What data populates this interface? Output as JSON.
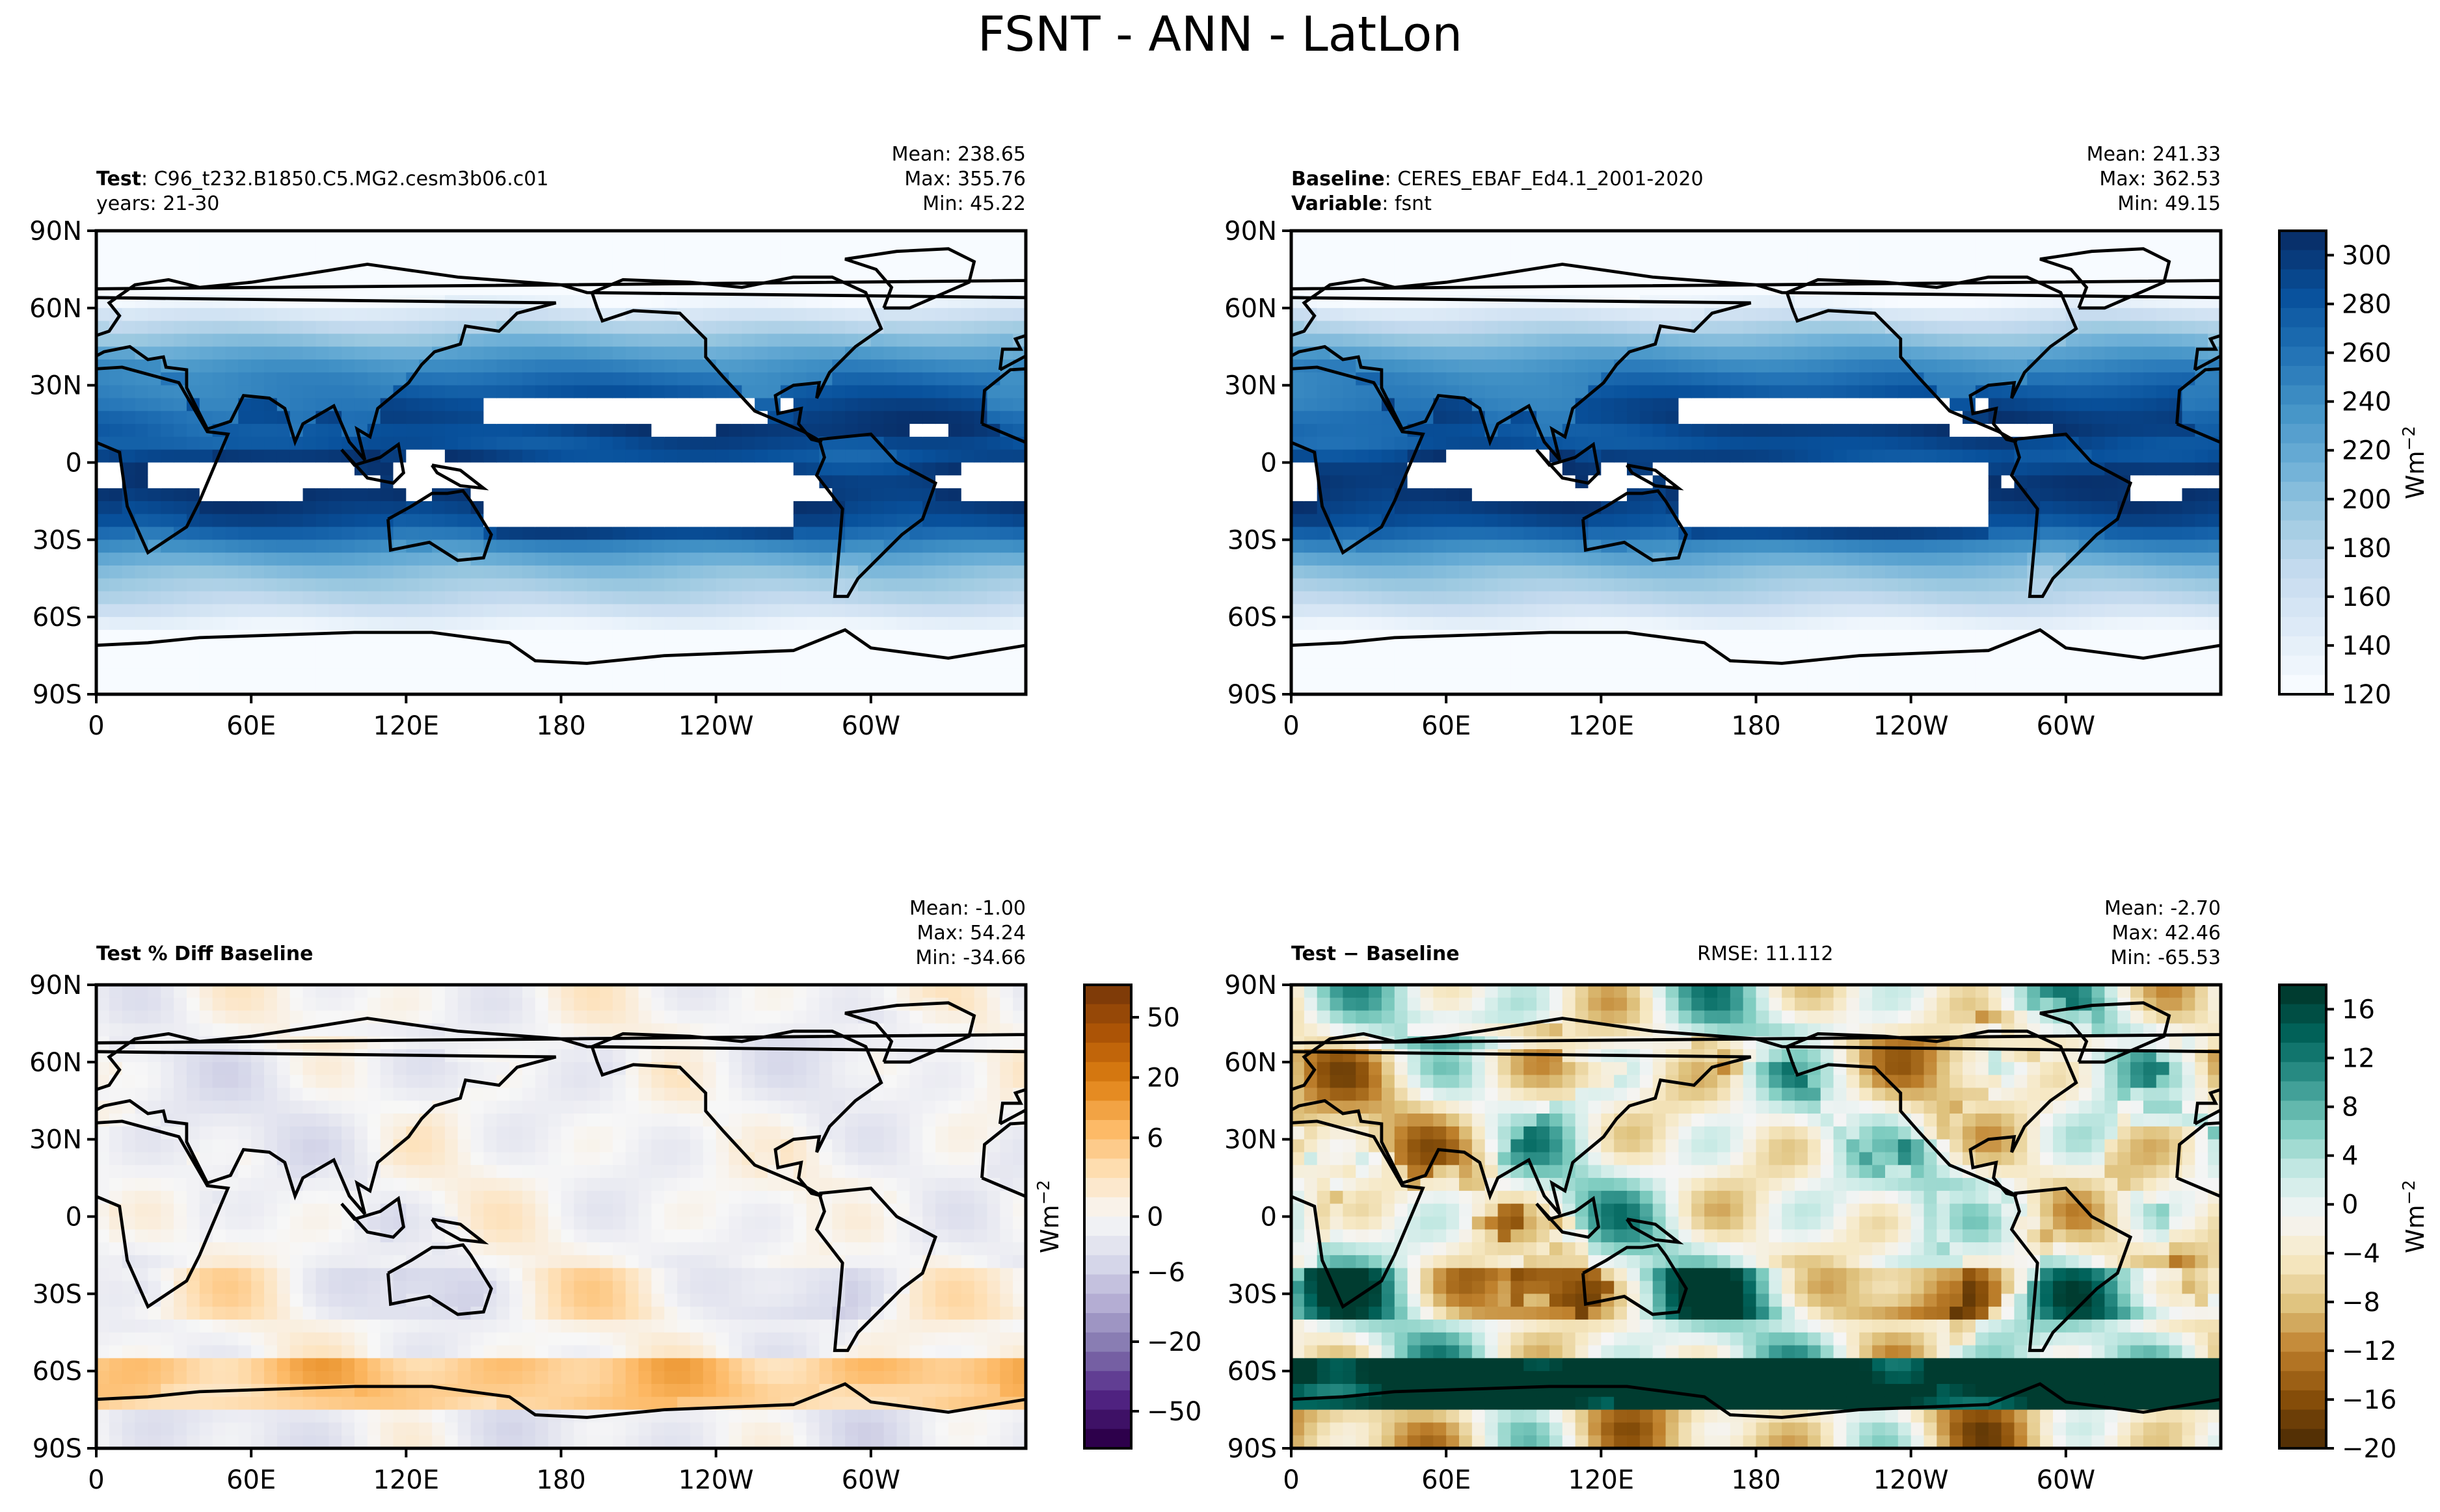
{
  "figure": {
    "title": "FSNT - ANN - LatLon"
  },
  "axes": {
    "x_ticks": [
      "0",
      "60E",
      "120E",
      "180",
      "120W",
      "60W"
    ],
    "y_ticks": [
      "90N",
      "60N",
      "30N",
      "0",
      "30S",
      "60S",
      "90S"
    ]
  },
  "chart_data": [
    {
      "type": "heatmap",
      "panel": "test",
      "header": {
        "line1_bold": "Test",
        "line1_rest": "C96_t232.B1850.C5.MG2.cesm3b06.c01",
        "line2": "years: 21-30"
      },
      "stats": {
        "mean": "Mean: 238.65",
        "max": "Max: 355.76",
        "min": "Min: 45.22"
      },
      "xlim": [
        0,
        360
      ],
      "ylim": [
        -90,
        90
      ],
      "colormap": "Blues",
      "range": [
        120,
        310
      ],
      "shared_colorbar_with": "baseline"
    },
    {
      "type": "heatmap",
      "panel": "baseline",
      "header": {
        "line1_bold": "Baseline",
        "line1_rest": "CERES_EBAF_Ed4.1_2001-2020",
        "line2_bold": "Variable",
        "line2_rest": "fsnt"
      },
      "stats": {
        "mean": "Mean: 241.33",
        "max": "Max: 362.53",
        "min": "Min: 49.15"
      },
      "xlim": [
        0,
        360
      ],
      "ylim": [
        -90,
        90
      ],
      "colormap": "Blues",
      "colorbar": {
        "ticks": [
          "300",
          "280",
          "260",
          "240",
          "220",
          "200",
          "180",
          "160",
          "140",
          "120"
        ],
        "tick_values": [
          300,
          280,
          260,
          240,
          220,
          200,
          180,
          160,
          140,
          120
        ],
        "range": [
          120,
          310
        ],
        "label": "Wm",
        "label_sup": "−2"
      }
    },
    {
      "type": "heatmap",
      "panel": "pct_diff",
      "header": {
        "line1_bold": "Test % Diff Baseline"
      },
      "stats": {
        "mean": "Mean: -1.00",
        "max": "Max: 54.24",
        "min": "Min: -34.66"
      },
      "xlim": [
        0,
        360
      ],
      "ylim": [
        -90,
        90
      ],
      "colormap": "PuOr",
      "colorbar": {
        "ticks": [
          "50",
          "20",
          "6",
          "0",
          "−6",
          "−20",
          "−50"
        ],
        "label": "Wm",
        "label_sup": "−2",
        "levels": 16
      }
    },
    {
      "type": "heatmap",
      "panel": "difference",
      "header": {
        "line1_bold": "Test − Baseline",
        "center": "RMSE: 11.112"
      },
      "stats": {
        "mean": "Mean: -2.70",
        "max": "Max: 42.46",
        "min": "Min: -65.53"
      },
      "xlim": [
        0,
        360
      ],
      "ylim": [
        -90,
        90
      ],
      "colormap": "BrBG",
      "colorbar": {
        "ticks": [
          "16",
          "12",
          "8",
          "4",
          "0",
          "−4",
          "−8",
          "−12",
          "−16",
          "−20"
        ],
        "tick_values": [
          16,
          12,
          8,
          4,
          0,
          -4,
          -8,
          -12,
          -16,
          -20
        ],
        "range": [
          -20,
          18
        ],
        "label": "Wm",
        "label_sup": "−2"
      }
    }
  ],
  "colors": {
    "blues": [
      "#f7fbff",
      "#deebf7",
      "#c6dbef",
      "#9ecae1",
      "#6baed6",
      "#4292c6",
      "#2171b5",
      "#08519c",
      "#08306b"
    ],
    "puor": [
      "#2d004b",
      "#542788",
      "#8073ac",
      "#b2abd2",
      "#d8daeb",
      "#f7f7f7",
      "#fee0b6",
      "#fdb863",
      "#e08214",
      "#b35806",
      "#7f3b08"
    ],
    "brbg": [
      "#543005",
      "#8c510a",
      "#bf812d",
      "#dfc27d",
      "#f6e8c3",
      "#f5f5f5",
      "#c7eae5",
      "#80cdc1",
      "#35978f",
      "#01665e",
      "#003c30"
    ]
  }
}
